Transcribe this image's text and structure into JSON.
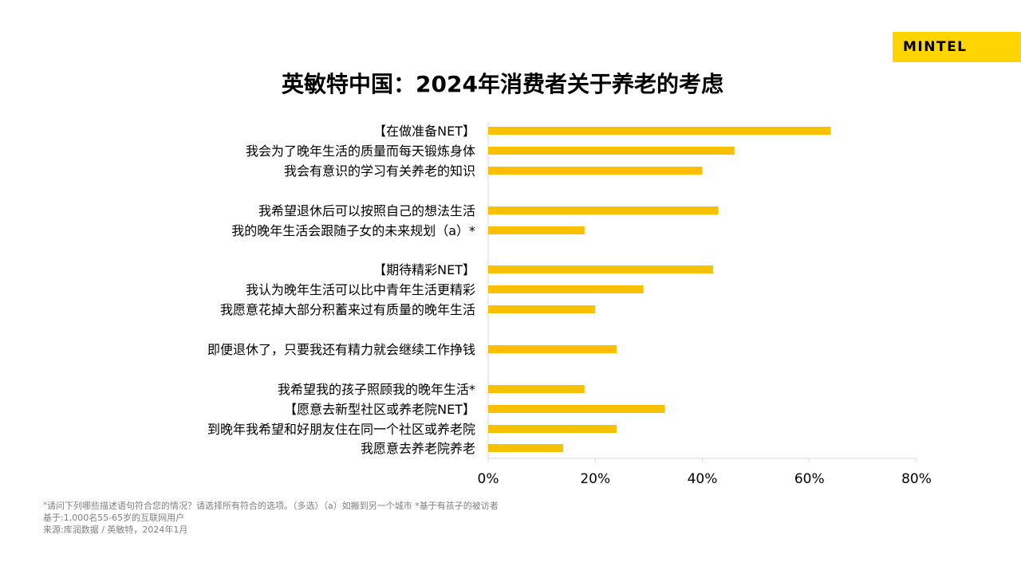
{
  "brand": {
    "logo_text": "MINTEL",
    "accent_color": "#ffd500"
  },
  "title": "英敏特中国：2024年消费者关于养老的考虑",
  "chart_data": {
    "type": "bar",
    "orientation": "horizontal",
    "bar_color": "#f9c000",
    "categories": [
      "【在做准备NET】",
      "我会为了晚年生活的质量而每天锻炼身体",
      "我会有意识的学习有关养老的知识",
      "我希望退休后可以按照自己的想法生活",
      "我的晚年生活会跟随子女的未来规划（a）*",
      "【期待精彩NET】",
      "我认为晚年生活可以比中青年生活更精彩",
      "我愿意花掉大部分积蓄来过有质量的晚年生活",
      "即便退休了，只要我还有精力就会继续工作挣钱",
      "我希望我的孩子照顾我的晚年生活*",
      "【愿意去新型社区或养老院NET】",
      "到晚年我希望和好朋友住在同一个社区或养老院",
      "我愿意去养老院养老"
    ],
    "values": [
      64,
      46,
      40,
      43,
      18,
      42,
      29,
      20,
      24,
      18,
      33,
      24,
      14
    ],
    "xlim": [
      0,
      80
    ],
    "x_ticks": [
      "0%",
      "20%",
      "40%",
      "60%",
      "80%"
    ],
    "x_tick_values": [
      0,
      20,
      40,
      60,
      80
    ],
    "grid": false,
    "legend": "none"
  },
  "footnotes": [
    "\"请问下列哪些描述语句符合您的情况？请选择所有符合的选项。（多选）（a）如搬到另一个城市  *基于有孩子的被访者",
    "基于:1,000名55-65岁的互联网用户",
    "来源:库润数据 / 英敏特，2024年1月"
  ]
}
